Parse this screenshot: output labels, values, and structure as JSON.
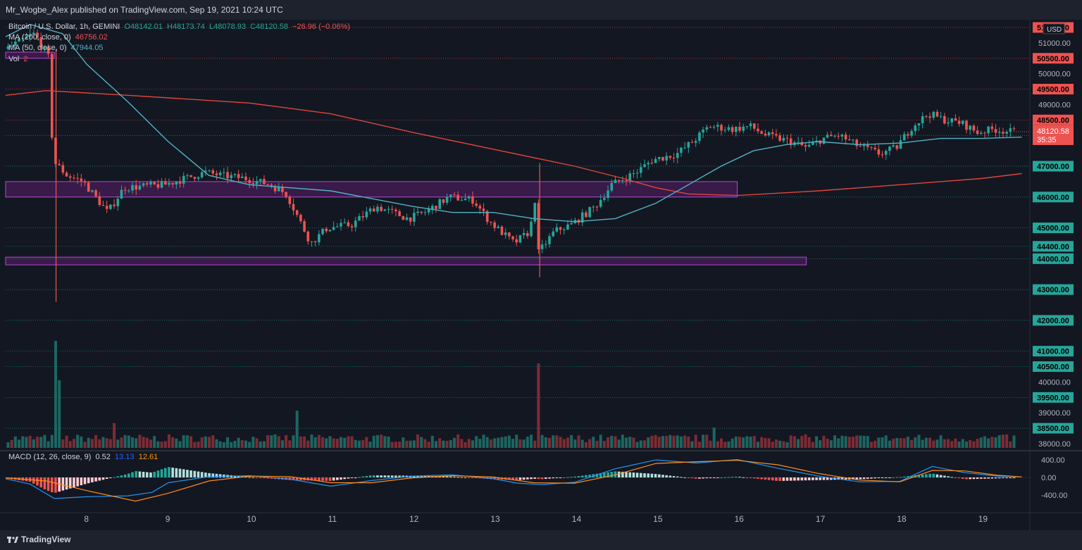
{
  "header": {
    "published_text": "Mr_Wogbe_Alex published on TradingView.com, Sep 19, 2021 10:24 UTC"
  },
  "footer": {
    "brand": "TradingView"
  },
  "legend": {
    "symbol": "Bitcoin / U.S. Dollar, 1h, GEMINI",
    "open": "O48142.01",
    "high": "H48173.74",
    "low": "L48078.93",
    "close": "C48120.58",
    "change": "−26.96 (−0.06%)",
    "ma200_label": "MA (200, close, 0)",
    "ma200_value": "46756.02",
    "ma50_label": "MA (50, close, 0)",
    "ma50_value": "47944.05",
    "vol_label": "Vol",
    "vol_value": "2",
    "macd_label": "MACD (12, 26, close, 9)",
    "macd_hist": "0.52",
    "macd_line": "13.13",
    "macd_signal": "12.61"
  },
  "colors": {
    "up": "#26a69a",
    "down": "#ef5350",
    "ma200": "#e0463a",
    "ma50": "#4fb3c5",
    "macd": "#2196f3",
    "signal": "#ff8c1a",
    "zone": "#9c27b0"
  },
  "chart_data": {
    "type": "candlestick",
    "x_ticks": [
      "8",
      "9",
      "10",
      "11",
      "12",
      "13",
      "14",
      "15",
      "16",
      "17",
      "18",
      "19"
    ],
    "x_range": [
      7,
      19.6
    ],
    "ylim": [
      38000,
      51500
    ],
    "y_ticks": [
      "51000.00",
      "50000.00",
      "49000.00",
      "40000.00",
      "39000.00",
      "38000.00"
    ],
    "currency": "USD",
    "price_levels": [
      {
        "value": 51500,
        "label": "51500.00",
        "color": "red"
      },
      {
        "value": 50500,
        "label": "50500.00",
        "color": "red"
      },
      {
        "value": 49500,
        "label": "49500.00",
        "color": "red"
      },
      {
        "value": 48500,
        "label": "48500.00",
        "color": "red"
      },
      {
        "value": 48000,
        "label": "48000.00",
        "color": "green"
      },
      {
        "value": 47000,
        "label": "47000.00",
        "color": "green"
      },
      {
        "value": 46000,
        "label": "46000.00",
        "color": "green"
      },
      {
        "value": 45000,
        "label": "45000.00",
        "color": "green"
      },
      {
        "value": 44400,
        "label": "44400.00",
        "color": "green"
      },
      {
        "value": 44000,
        "label": "44000.00",
        "color": "green"
      },
      {
        "value": 43000,
        "label": "43000.00",
        "color": "green"
      },
      {
        "value": 42000,
        "label": "42000.00",
        "color": "green"
      },
      {
        "value": 41000,
        "label": "41000.00",
        "color": "green"
      },
      {
        "value": 40500,
        "label": "40500.00",
        "color": "green"
      },
      {
        "value": 39500,
        "label": "39500.00",
        "color": "green"
      },
      {
        "value": 38500,
        "label": "38500.00",
        "color": "green"
      }
    ],
    "last_price": {
      "value": 48120.58,
      "label": "48120.58",
      "countdown": "35:35"
    },
    "zones": [
      {
        "x0": 7.0,
        "x1": 7.6,
        "y0": 50500,
        "y1": 50700
      },
      {
        "x0": 7.0,
        "x1": 16.0,
        "y0": 46000,
        "y1": 46500
      },
      {
        "x0": 7.0,
        "x1": 16.85,
        "y0": 43800,
        "y1": 44050
      }
    ],
    "price_path": [
      [
        7.05,
        50800
      ],
      [
        7.4,
        51300
      ],
      [
        7.6,
        50400
      ],
      [
        7.62,
        47200
      ],
      [
        7.8,
        46700
      ],
      [
        8.0,
        46500
      ],
      [
        8.3,
        45500
      ],
      [
        8.5,
        46300
      ],
      [
        9.0,
        46400
      ],
      [
        9.5,
        46800
      ],
      [
        9.7,
        46700
      ],
      [
        10.0,
        46600
      ],
      [
        10.3,
        46400
      ],
      [
        10.5,
        46100
      ],
      [
        10.8,
        44500
      ],
      [
        11.0,
        45000
      ],
      [
        11.3,
        45100
      ],
      [
        11.6,
        45700
      ],
      [
        12.0,
        45300
      ],
      [
        12.2,
        45500
      ],
      [
        12.5,
        46000
      ],
      [
        12.8,
        45900
      ],
      [
        13.0,
        45200
      ],
      [
        13.3,
        44500
      ],
      [
        13.5,
        44900
      ],
      [
        13.55,
        46100
      ],
      [
        13.6,
        44200
      ],
      [
        13.8,
        44900
      ],
      [
        14.0,
        45100
      ],
      [
        14.3,
        45700
      ],
      [
        14.5,
        46400
      ],
      [
        14.8,
        46800
      ],
      [
        15.0,
        47200
      ],
      [
        15.3,
        47400
      ],
      [
        15.5,
        47800
      ],
      [
        15.7,
        48300
      ],
      [
        16.0,
        48200
      ],
      [
        16.2,
        48300
      ],
      [
        16.4,
        48000
      ],
      [
        16.7,
        47800
      ],
      [
        16.9,
        47600
      ],
      [
        17.1,
        47900
      ],
      [
        17.3,
        48000
      ],
      [
        17.5,
        47700
      ],
      [
        17.8,
        47400
      ],
      [
        18.0,
        47600
      ],
      [
        18.2,
        48300
      ],
      [
        18.4,
        48700
      ],
      [
        18.6,
        48500
      ],
      [
        18.8,
        48400
      ],
      [
        19.0,
        48100
      ],
      [
        19.2,
        48200
      ],
      [
        19.4,
        48120
      ]
    ],
    "ma200_path": [
      [
        7.0,
        49300
      ],
      [
        7.5,
        49450
      ],
      [
        8.5,
        49300
      ],
      [
        10.0,
        49050
      ],
      [
        11.0,
        48700
      ],
      [
        12.0,
        48100
      ],
      [
        13.0,
        47550
      ],
      [
        14.0,
        47000
      ],
      [
        14.6,
        46600
      ],
      [
        15.0,
        46300
      ],
      [
        15.4,
        46100
      ],
      [
        16.0,
        46050
      ],
      [
        17.0,
        46200
      ],
      [
        18.0,
        46400
      ],
      [
        19.0,
        46600
      ],
      [
        19.5,
        46760
      ]
    ],
    "ma50_path": [
      [
        7.0,
        51200
      ],
      [
        7.3,
        51600
      ],
      [
        7.7,
        51300
      ],
      [
        8.0,
        50300
      ],
      [
        8.5,
        49100
      ],
      [
        9.0,
        47800
      ],
      [
        9.5,
        46700
      ],
      [
        10.0,
        46400
      ],
      [
        11.0,
        46200
      ],
      [
        12.0,
        45700
      ],
      [
        12.5,
        45500
      ],
      [
        13.0,
        45500
      ],
      [
        13.5,
        45300
      ],
      [
        14.0,
        45200
      ],
      [
        14.5,
        45300
      ],
      [
        15.0,
        45800
      ],
      [
        15.4,
        46400
      ],
      [
        15.8,
        47000
      ],
      [
        16.2,
        47500
      ],
      [
        16.6,
        47700
      ],
      [
        17.0,
        47800
      ],
      [
        17.5,
        47700
      ],
      [
        18.0,
        47750
      ],
      [
        18.5,
        47900
      ],
      [
        19.0,
        47900
      ],
      [
        19.5,
        47944
      ]
    ],
    "volume_spikes": [
      [
        7.6,
        0.95
      ],
      [
        7.65,
        0.6
      ],
      [
        13.55,
        0.75
      ],
      [
        10.6,
        0.33
      ],
      [
        8.35,
        0.22
      ],
      [
        15.7,
        0.18
      ]
    ],
    "macd": {
      "ylim": [
        -450,
        450
      ],
      "y_ticks": [
        "400.00",
        "0.00",
        "-400.00"
      ],
      "macd_path": [
        [
          7.0,
          -30
        ],
        [
          7.3,
          -150
        ],
        [
          7.6,
          -480
        ],
        [
          8.0,
          -440
        ],
        [
          8.5,
          -420
        ],
        [
          8.8,
          -340
        ],
        [
          9.0,
          -120
        ],
        [
          9.5,
          20
        ],
        [
          10.0,
          40
        ],
        [
          10.5,
          -40
        ],
        [
          11.0,
          -200
        ],
        [
          11.5,
          -70
        ],
        [
          12.0,
          30
        ],
        [
          12.5,
          60
        ],
        [
          13.0,
          -30
        ],
        [
          13.3,
          -130
        ],
        [
          13.6,
          -160
        ],
        [
          14.0,
          -110
        ],
        [
          14.5,
          200
        ],
        [
          15.0,
          400
        ],
        [
          15.5,
          330
        ],
        [
          16.0,
          410
        ],
        [
          16.5,
          210
        ],
        [
          17.0,
          30
        ],
        [
          17.5,
          -100
        ],
        [
          18.0,
          -90
        ],
        [
          18.4,
          250
        ],
        [
          18.8,
          110
        ],
        [
          19.2,
          30
        ],
        [
          19.5,
          13
        ]
      ],
      "signal_path": [
        [
          7.0,
          -10
        ],
        [
          7.5,
          -80
        ],
        [
          8.0,
          -300
        ],
        [
          8.6,
          -540
        ],
        [
          9.0,
          -360
        ],
        [
          9.5,
          -80
        ],
        [
          10.0,
          30
        ],
        [
          10.5,
          20
        ],
        [
          11.0,
          -120
        ],
        [
          11.5,
          -120
        ],
        [
          12.0,
          -10
        ],
        [
          12.5,
          40
        ],
        [
          13.0,
          10
        ],
        [
          13.5,
          -120
        ],
        [
          14.0,
          -130
        ],
        [
          14.5,
          60
        ],
        [
          15.0,
          320
        ],
        [
          15.5,
          360
        ],
        [
          16.0,
          390
        ],
        [
          16.5,
          290
        ],
        [
          17.0,
          90
        ],
        [
          17.5,
          -60
        ],
        [
          18.0,
          -100
        ],
        [
          18.4,
          160
        ],
        [
          18.8,
          150
        ],
        [
          19.2,
          50
        ],
        [
          19.5,
          13
        ]
      ]
    }
  }
}
